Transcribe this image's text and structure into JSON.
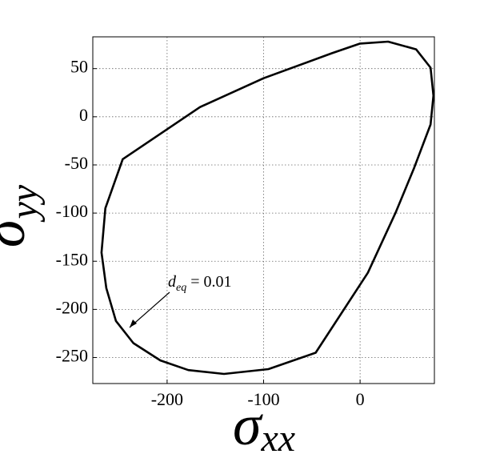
{
  "chart_data": {
    "type": "line",
    "xlabel": {
      "symbol": "σ",
      "subscript": "xx"
    },
    "ylabel": {
      "symbol": "σ",
      "subscript": "yy"
    },
    "annotation": {
      "symbol": "d",
      "subscript": "eq",
      "text": "= 0.01"
    },
    "x": [
      -246,
      -166,
      -100,
      -29,
      0,
      29,
      58,
      73,
      76,
      73,
      56,
      37,
      8,
      -46,
      -95,
      -141,
      -178,
      -207,
      -235,
      -253,
      -263,
      -268,
      -264
    ],
    "values": [
      -44,
      10,
      40,
      66,
      76,
      78,
      70,
      51,
      22,
      -8,
      -53,
      -99,
      -162,
      -245,
      -262,
      -267,
      -263,
      -253,
      -235,
      -212,
      -178,
      -141,
      -95
    ],
    "color": "#000000",
    "xlim": [
      -277,
      77
    ],
    "xticks": [
      -200,
      -100,
      0
    ],
    "ylim": [
      -277,
      83
    ],
    "yticks": [
      50,
      0,
      -50,
      -100,
      -150,
      -200,
      -250
    ],
    "grid": true
  }
}
